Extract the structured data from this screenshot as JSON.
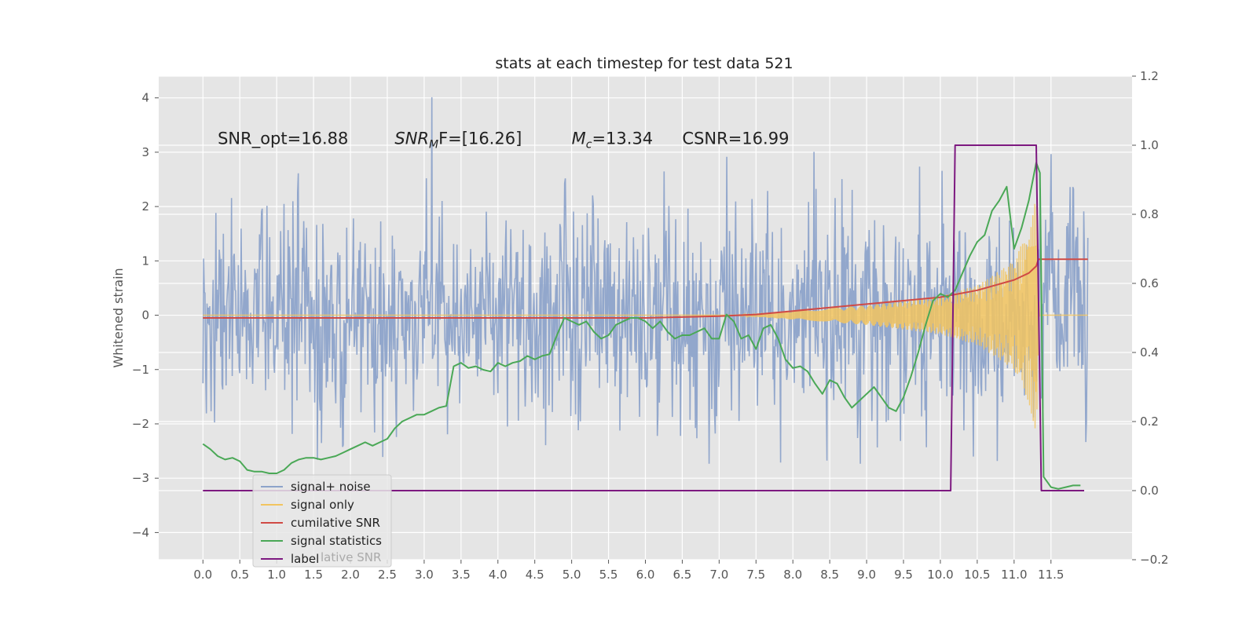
{
  "chart_data": {
    "type": "line",
    "title": "stats at each timestep for test data 521",
    "xlabel": "",
    "ylabel": "Whitened strain",
    "xlim": [
      -0.6,
      12.6
    ],
    "ylim": [
      -4.5,
      4.4
    ],
    "y2lim": [
      -0.2,
      1.2
    ],
    "x_ticks": [
      "0.0",
      "0.5",
      "1.0",
      "1.5",
      "2.0",
      "2.5",
      "3.0",
      "3.5",
      "4.0",
      "4.5",
      "5.0",
      "5.5",
      "6.0",
      "6.5",
      "7.0",
      "7.5",
      "8.0",
      "8.5",
      "9.0",
      "9.5",
      "10.0",
      "10.5",
      "11.0",
      "11.5"
    ],
    "y_ticks": [
      "−4",
      "−3",
      "−2",
      "−1",
      "0",
      "1",
      "2",
      "3",
      "4"
    ],
    "y2_ticks": [
      "−0.2",
      "0.0",
      "0.2",
      "0.4",
      "0.6",
      "0.8",
      "1.0",
      "1.2"
    ],
    "grid": true,
    "legend_position": "lower-left",
    "annotations": [
      {
        "text": "SNR_opt=16.88",
        "x": 0.2,
        "y": 3.15
      },
      {
        "text": "F=[16.26]",
        "base": "SNR",
        "sub": "M",
        "x": 2.6,
        "y": 3.15
      },
      {
        "text": "=13.34",
        "base": "M",
        "sub": "c",
        "x": 5.0,
        "y": 3.15
      },
      {
        "text": "CSNR=16.99",
        "x": 6.5,
        "y": 3.15
      }
    ],
    "series": [
      {
        "name": "signal+ noise",
        "axis": "left",
        "color": "#8da3ca",
        "kind": "noise",
        "x_range": [
          0.0,
          12.0
        ],
        "typical_range": [
          -2.0,
          2.0
        ],
        "extreme_range": [
          -4.1,
          4.05
        ]
      },
      {
        "name": "signal only",
        "axis": "left",
        "color": "#f2c45f",
        "kind": "chirp",
        "envelope_x": [
          7.2,
          8.0,
          9.0,
          10.0,
          10.5,
          11.0,
          11.2,
          11.3,
          11.35,
          12.0
        ],
        "envelope_amp": [
          0.0,
          0.08,
          0.18,
          0.35,
          0.55,
          1.0,
          1.6,
          2.3,
          0.0,
          0.0
        ]
      },
      {
        "name": "cumilative SNR",
        "axis": "right",
        "color": "#d04a45",
        "x": [
          0.0,
          6.0,
          7.0,
          7.5,
          8.0,
          8.5,
          9.0,
          9.5,
          10.0,
          10.5,
          11.0,
          11.2,
          11.3,
          11.33,
          12.0
        ],
        "y": [
          0.5,
          0.5,
          0.505,
          0.51,
          0.52,
          0.53,
          0.54,
          0.55,
          0.56,
          0.58,
          0.61,
          0.63,
          0.65,
          0.67,
          0.67
        ]
      },
      {
        "name": "signal statistics",
        "axis": "right",
        "color": "#4aa856",
        "x": [
          0.0,
          0.1,
          0.2,
          0.3,
          0.4,
          0.5,
          0.6,
          0.7,
          0.8,
          0.9,
          1.0,
          1.1,
          1.2,
          1.3,
          1.4,
          1.5,
          1.6,
          1.7,
          1.8,
          1.9,
          2.0,
          2.1,
          2.2,
          2.3,
          2.4,
          2.5,
          2.6,
          2.7,
          2.8,
          2.9,
          3.0,
          3.1,
          3.2,
          3.3,
          3.4,
          3.5,
          3.6,
          3.7,
          3.8,
          3.9,
          4.0,
          4.1,
          4.2,
          4.3,
          4.4,
          4.5,
          4.6,
          4.7,
          4.8,
          4.9,
          5.0,
          5.1,
          5.2,
          5.3,
          5.4,
          5.5,
          5.6,
          5.7,
          5.8,
          5.9,
          6.0,
          6.1,
          6.2,
          6.3,
          6.4,
          6.5,
          6.6,
          6.7,
          6.8,
          6.9,
          7.0,
          7.1,
          7.2,
          7.3,
          7.4,
          7.5,
          7.6,
          7.7,
          7.8,
          7.9,
          8.0,
          8.1,
          8.2,
          8.3,
          8.4,
          8.5,
          8.6,
          8.7,
          8.8,
          8.9,
          9.0,
          9.1,
          9.2,
          9.3,
          9.4,
          9.5,
          9.6,
          9.7,
          9.8,
          9.9,
          10.0,
          10.1,
          10.2,
          10.3,
          10.4,
          10.5,
          10.6,
          10.7,
          10.8,
          10.9,
          11.0,
          11.1,
          11.2,
          11.3,
          11.35,
          11.4,
          11.5,
          11.6,
          11.7,
          11.8,
          11.9
        ],
        "y": [
          0.135,
          0.12,
          0.1,
          0.09,
          0.095,
          0.085,
          0.06,
          0.055,
          0.055,
          0.05,
          0.05,
          0.06,
          0.08,
          0.09,
          0.095,
          0.095,
          0.09,
          0.095,
          0.1,
          0.11,
          0.12,
          0.13,
          0.14,
          0.13,
          0.14,
          0.15,
          0.18,
          0.2,
          0.21,
          0.22,
          0.22,
          0.23,
          0.24,
          0.245,
          0.36,
          0.37,
          0.355,
          0.36,
          0.35,
          0.345,
          0.37,
          0.36,
          0.37,
          0.375,
          0.39,
          0.38,
          0.39,
          0.395,
          0.45,
          0.5,
          0.49,
          0.48,
          0.49,
          0.46,
          0.44,
          0.45,
          0.48,
          0.49,
          0.5,
          0.5,
          0.49,
          0.47,
          0.49,
          0.46,
          0.44,
          0.45,
          0.45,
          0.46,
          0.47,
          0.44,
          0.44,
          0.51,
          0.49,
          0.44,
          0.45,
          0.41,
          0.47,
          0.48,
          0.44,
          0.38,
          0.355,
          0.36,
          0.345,
          0.31,
          0.28,
          0.32,
          0.31,
          0.27,
          0.24,
          0.26,
          0.28,
          0.3,
          0.27,
          0.24,
          0.23,
          0.27,
          0.33,
          0.4,
          0.48,
          0.55,
          0.57,
          0.56,
          0.58,
          0.63,
          0.68,
          0.72,
          0.74,
          0.81,
          0.84,
          0.88,
          0.7,
          0.76,
          0.84,
          0.95,
          0.92,
          0.04,
          0.01,
          0.005,
          0.01,
          0.015,
          0.015
        ]
      },
      {
        "name": "label",
        "axis": "right",
        "color": "#7d1980",
        "x": [
          0.0,
          10.14,
          10.2,
          11.3,
          11.37,
          11.95
        ],
        "y": [
          0.0,
          0.0,
          1.0,
          1.0,
          0.0,
          0.0
        ]
      }
    ],
    "legend_hidden_text": "lative SNR"
  }
}
